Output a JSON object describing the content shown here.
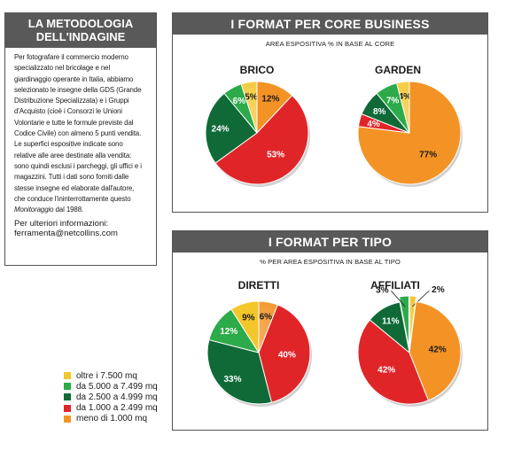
{
  "methodology": {
    "title_line1": "LA METODOLOGIA",
    "title_line2": "DELL'INDAGINE",
    "lines": [
      "Per fotografare il commercio moderno",
      "specializzato nel bricolage e nel",
      "giardinaggio operante in Italia, abbiamo",
      "selezionato le insegne della GDS (Grande",
      "Distribuzione Specializzata) e i Gruppi",
      "d'Acquisto (cioè i Consorzi le Unioni",
      "Volontarie e tutte le formule previste dal",
      "Codice Civile) con almeno 5 punti vendita.",
      "Le superfici espositive indicate sono",
      "relative alle aree destinate alla vendita:",
      "sono quindi esclusi i parcheggi, gli uffici e i",
      "magazzini. Tutti i dati sono forniti dalle",
      "stesse insegne ed elaborate dall'autore,",
      "che conduce l'ininterrottamente questo"
    ],
    "last_line_italic": "Monitoraggio",
    "last_line_rest": " dal 1988.",
    "info_line1": "Per ulteriori informazioni:",
    "info_line2": "ferramenta@netcollins.com"
  },
  "panel_core": {
    "title": "I FORMAT PER CORE BUSINESS",
    "subtitle": "AREA ESPOSITIVA % IN BASE AL CORE"
  },
  "panel_tipo": {
    "title": "I FORMAT PER TIPO",
    "subtitle": "% PER AREA ESPOSITIVA IN BASE AL TIPO"
  },
  "legend": [
    {
      "label": "oltre i 7.500 mq",
      "color": "#f3c62c"
    },
    {
      "label": "da 5.000 a 7.499 mq",
      "color": "#2daa4a"
    },
    {
      "label": "da 2.500 a 4.999 mq",
      "color": "#0f6a38"
    },
    {
      "label": "da 1.000 a 2.499 mq",
      "color": "#e02529"
    },
    {
      "label": "meno di 1.000 mq",
      "color": "#f39325"
    }
  ],
  "chart_data": [
    {
      "type": "pie",
      "title": "BRICO",
      "categories": [
        "oltre i 7.500 mq",
        "da 5.000 a 7.499 mq",
        "da 2.500 a 4.999 mq",
        "da 1.000 a 2.499 mq",
        "meno di 1.000 mq"
      ],
      "values": [
        5,
        6,
        24,
        53,
        12
      ],
      "labels": [
        "5%",
        "6%",
        "24%",
        "53%",
        "12%"
      ]
    },
    {
      "type": "pie",
      "title": "GARDEN",
      "categories": [
        "oltre i 7.500 mq",
        "da 5.000 a 7.499 mq",
        "da 2.500 a 4.999 mq",
        "da 1.000 a 2.499 mq",
        "meno di 1.000 mq"
      ],
      "values": [
        4,
        7,
        8,
        4,
        77
      ],
      "labels": [
        "4%",
        "7%",
        "8%",
        "4%",
        "77%"
      ]
    },
    {
      "type": "pie",
      "title": "DIRETTI",
      "categories": [
        "oltre i 7.500 mq",
        "da 5.000 a 7.499 mq",
        "da 2.500 a 4.999 mq",
        "da 1.000 a 2.499 mq",
        "meno di 1.000 mq"
      ],
      "values": [
        9,
        12,
        33,
        40,
        6
      ],
      "labels": [
        "9%",
        "12%",
        "33%",
        "40%",
        "6%"
      ]
    },
    {
      "type": "pie",
      "title": "AFFILIATI",
      "categories": [
        "oltre i 7.500 mq",
        "da 5.000 a 7.499 mq",
        "da 2.500 a 4.999 mq",
        "da 1.000 a 2.499 mq",
        "meno di 1.000 mq"
      ],
      "values": [
        2,
        3,
        11,
        42,
        42
      ],
      "labels": [
        "2%",
        "3%",
        "11%",
        "42%",
        "42%"
      ]
    }
  ]
}
